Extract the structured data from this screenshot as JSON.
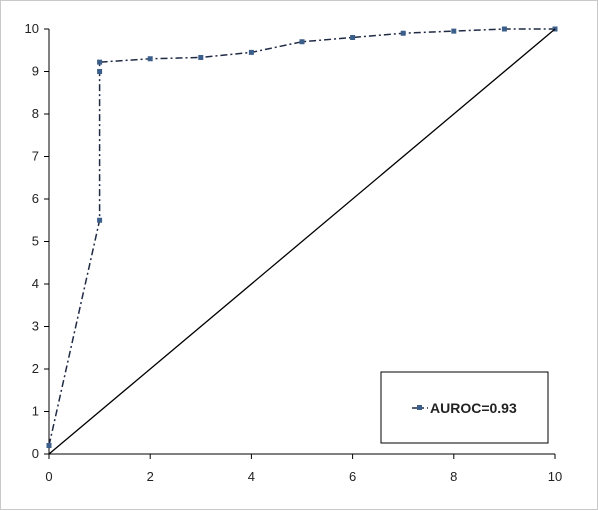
{
  "chart_data": {
    "type": "line",
    "title": "",
    "xlabel": "",
    "ylabel": "",
    "xlim": [
      0,
      10
    ],
    "ylim": [
      0,
      10
    ],
    "x_ticks": [
      0,
      2,
      4,
      6,
      8,
      10
    ],
    "y_ticks": [
      0,
      1,
      2,
      3,
      4,
      5,
      6,
      7,
      8,
      9,
      10
    ],
    "grid": false,
    "legend_position": "bottom-right",
    "series": [
      {
        "name": "AUROC=0.93",
        "style": "dash-dot",
        "marker": "square",
        "color": "#1f2a44",
        "marker_color": "#3b5f8a",
        "x": [
          0,
          1,
          1,
          1,
          2,
          3,
          4,
          5,
          6,
          7,
          8,
          9,
          10
        ],
        "y": [
          0.2,
          5.5,
          9.0,
          9.22,
          9.3,
          9.33,
          9.45,
          9.7,
          9.8,
          9.9,
          9.95,
          10.0,
          10.0
        ]
      },
      {
        "style": "solid",
        "marker": "none",
        "color": "#000000",
        "x": [
          0,
          10
        ],
        "y": [
          0,
          10
        ]
      }
    ]
  }
}
